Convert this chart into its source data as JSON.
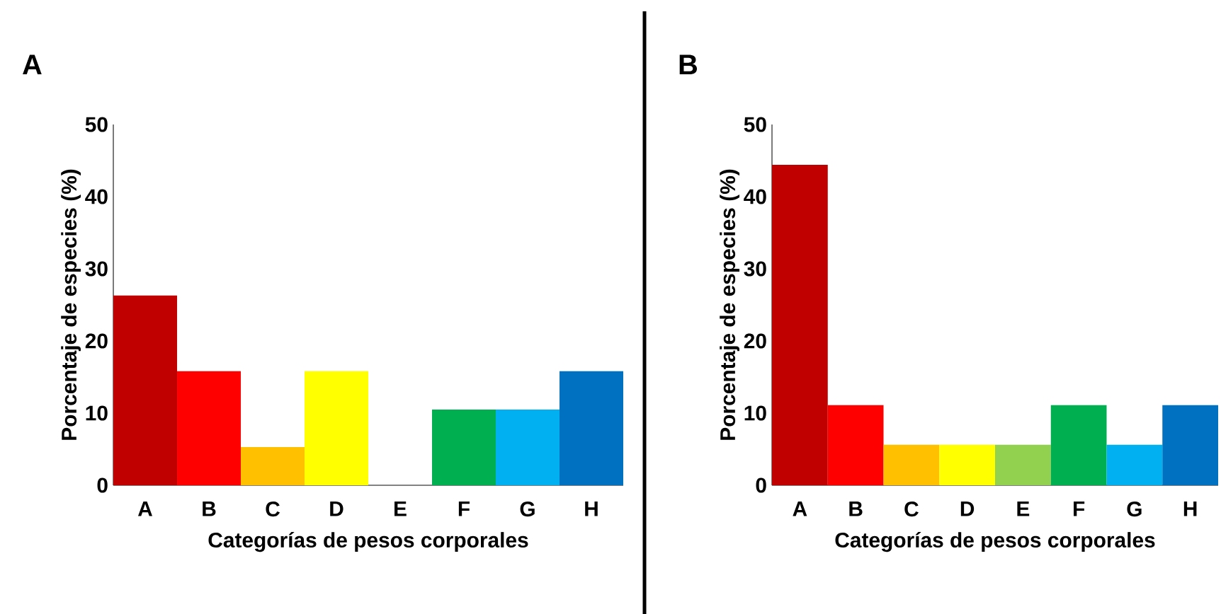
{
  "chart_data": [
    {
      "type": "bar",
      "title": "A",
      "xlabel": "Categorías de pesos corporales",
      "ylabel": "Porcentaje de especies (%)",
      "categories": [
        "A",
        "B",
        "C",
        "D",
        "E",
        "F",
        "G",
        "H"
      ],
      "values": [
        26.3,
        15.8,
        5.3,
        15.8,
        0,
        10.5,
        10.5,
        15.8
      ],
      "colors": [
        "#c00000",
        "#ff0000",
        "#ffc000",
        "#ffff00",
        "#92d050",
        "#00b050",
        "#00b0f0",
        "#0070c0"
      ],
      "ylim": [
        0,
        50
      ],
      "yticks": [
        0,
        10,
        20,
        30,
        40,
        50
      ]
    },
    {
      "type": "bar",
      "title": "B",
      "xlabel": "Categorías de pesos corporales",
      "ylabel": "Porcentaje de especies (%)",
      "categories": [
        "A",
        "B",
        "C",
        "D",
        "E",
        "F",
        "G",
        "H"
      ],
      "values": [
        44.4,
        11.1,
        5.6,
        5.6,
        5.6,
        11.1,
        5.6,
        11.1
      ],
      "colors": [
        "#c00000",
        "#ff0000",
        "#ffc000",
        "#ffff00",
        "#92d050",
        "#00b050",
        "#00b0f0",
        "#0070c0"
      ],
      "ylim": [
        0,
        50
      ],
      "yticks": [
        0,
        10,
        20,
        30,
        40,
        50
      ]
    }
  ]
}
